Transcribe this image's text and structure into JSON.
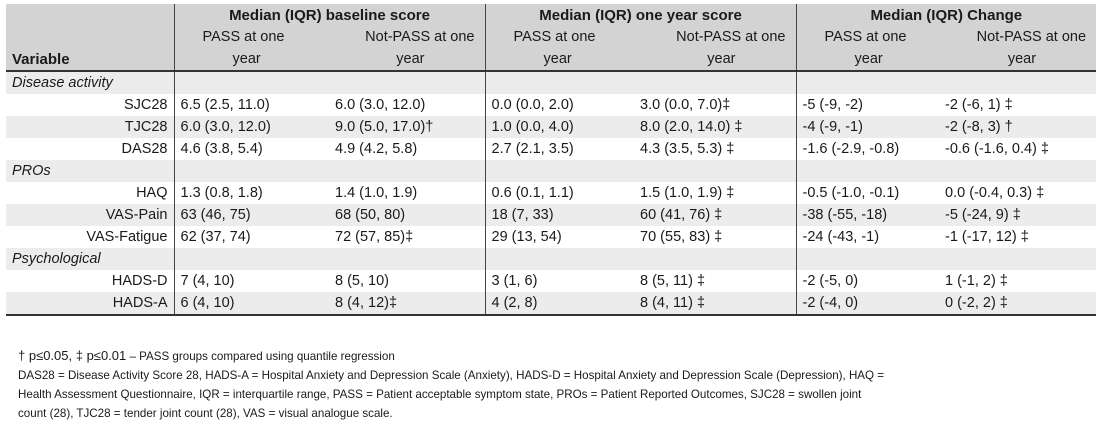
{
  "header": {
    "variable_label": "Variable",
    "groups": [
      "Median (IQR) baseline score",
      "Median (IQR) one year score",
      "Median (IQR) Change"
    ],
    "sub": {
      "pass_line1": "PASS at one",
      "pass_line2": "year",
      "npass_line1": "Not-PASS at one",
      "npass_line2": "year"
    }
  },
  "sections": {
    "disease": "Disease activity",
    "pros": "PROs",
    "psych": "Psychological"
  },
  "rows": [
    {
      "var": "SJC28",
      "c": [
        "6.5 (2.5, 11.0)",
        "6.0 (3.0, 12.0)",
        "0.0 (0.0, 2.0)",
        "3.0 (0.0, 7.0)‡",
        "-5 (-9, -2)",
        "-2 (-6, 1) ‡"
      ]
    },
    {
      "var": "TJC28",
      "c": [
        "6.0 (3.0, 12.0)",
        "9.0 (5.0, 17.0)†",
        "1.0 (0.0, 4.0)",
        "8.0 (2.0, 14.0) ‡",
        "-4 (-9, -1)",
        "-2 (-8, 3) †"
      ]
    },
    {
      "var": "DAS28",
      "c": [
        "4.6 (3.8, 5.4)",
        "4.9 (4.2, 5.8)",
        "2.7 (2.1, 3.5)",
        "4.3 (3.5, 5.3) ‡",
        "-1.6 (-2.9, -0.8)",
        "-0.6 (-1.6, 0.4) ‡"
      ]
    },
    {
      "var": "HAQ",
      "c": [
        "1.3 (0.8, 1.8)",
        "1.4 (1.0, 1.9)",
        "0.6 (0.1, 1.1)",
        "1.5 (1.0, 1.9) ‡",
        "-0.5 (-1.0, -0.1)",
        "0.0 (-0.4, 0.3) ‡"
      ]
    },
    {
      "var": "VAS-Pain",
      "c": [
        "63 (46, 75)",
        "68 (50, 80)",
        "18 (7, 33)",
        "60 (41, 76) ‡",
        "-38 (-55, -18)",
        "-5 (-24, 9) ‡"
      ]
    },
    {
      "var": "VAS-Fatigue",
      "c": [
        "62 (37, 74)",
        "72 (57, 85)‡",
        "29 (13, 54)",
        "70 (55, 83) ‡",
        "-24 (-43, -1)",
        "-1 (-17, 12) ‡"
      ]
    },
    {
      "var": "HADS-D",
      "c": [
        "7 (4, 10)",
        "8 (5, 10)",
        "3 (1, 6)",
        "8 (5, 11) ‡",
        "-2 (-5, 0)",
        "1 (-1, 2) ‡"
      ]
    },
    {
      "var": "HADS-A",
      "c": [
        "6 (4, 10)",
        "8 (4, 12)‡",
        "4 (2, 8)",
        "8 (4, 11) ‡",
        "-2 (-4, 0)",
        "0 (-2, 2) ‡"
      ]
    }
  ],
  "notes": {
    "significance": "† p≤0.05, ‡ p≤0.01",
    "method": " – PASS groups compared using quantile regression",
    "abbrev_1": "DAS28 = Disease Activity Score 28, HADS-A = Hospital Anxiety and Depression Scale (Anxiety), HADS-D = Hospital Anxiety and Depression Scale (Depression), HAQ =",
    "abbrev_2": "Health Assessment Questionnaire, IQR = interquartile range, PASS = Patient acceptable symptom state, PROs = Patient Reported Outcomes, SJC28 = swollen joint",
    "abbrev_3": "count (28), TJC28 = tender joint count (28), VAS = visual analogue scale."
  }
}
